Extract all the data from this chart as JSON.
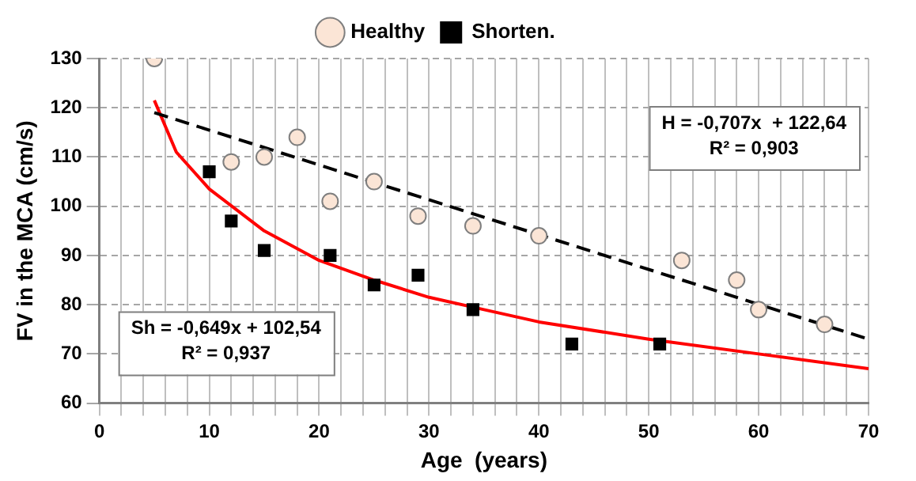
{
  "chart_data": {
    "type": "scatter",
    "xlabel": "Age  (years)",
    "ylabel": "FV in the MCA (cm/s)",
    "xlim": [
      0,
      70
    ],
    "ylim": [
      60,
      130
    ],
    "xticks": [
      0,
      {
        "value": 2,
        "label": null
      },
      {
        "value": 4,
        "label": null
      },
      {
        "value": 6,
        "label": null
      },
      {
        "value": 8,
        "label": null
      },
      10,
      {
        "value": 12,
        "label": null
      },
      {
        "value": 14,
        "label": null
      },
      {
        "value": 16,
        "label": null
      },
      {
        "value": 18,
        "label": null
      },
      20,
      {
        "value": 22,
        "label": null
      },
      {
        "value": 24,
        "label": null
      },
      {
        "value": 26,
        "label": null
      },
      {
        "value": 28,
        "label": null
      },
      30,
      {
        "value": 32,
        "label": null
      },
      {
        "value": 34,
        "label": null
      },
      {
        "value": 36,
        "label": null
      },
      {
        "value": 38,
        "label": null
      },
      40,
      {
        "value": 42,
        "label": null
      },
      {
        "value": 44,
        "label": null
      },
      {
        "value": 46,
        "label": null
      },
      {
        "value": 48,
        "label": null
      },
      50,
      {
        "value": 52,
        "label": null
      },
      {
        "value": 54,
        "label": null
      },
      {
        "value": 56,
        "label": null
      },
      {
        "value": 58,
        "label": null
      },
      60,
      {
        "value": 62,
        "label": null
      },
      {
        "value": 64,
        "label": null
      },
      {
        "value": 66,
        "label": null
      },
      {
        "value": 68,
        "label": null
      },
      70
    ],
    "yticks": [
      60,
      70,
      80,
      90,
      100,
      110,
      120,
      130
    ],
    "grid": true,
    "legend": "top",
    "series": [
      {
        "name": "Healthy",
        "color": "#fbe5d6",
        "marker": "circle",
        "x": [
          5,
          12,
          15,
          18,
          21,
          25,
          29,
          34,
          40,
          53,
          58,
          60,
          66
        ],
        "values": [
          130,
          109,
          110,
          114,
          101,
          105,
          98,
          96,
          94,
          89,
          85,
          79,
          76
        ]
      },
      {
        "name": "Shorten.",
        "color": "#000000",
        "marker": "square",
        "x": [
          10,
          12,
          15,
          21,
          25,
          29,
          34,
          43,
          51
        ],
        "values": [
          107,
          97,
          91,
          90,
          84,
          86,
          79,
          72,
          72
        ]
      },
      {
        "type": "line",
        "color": "#000000",
        "marker": "none",
        "line_style": "dashed",
        "x": [
          5,
          70
        ],
        "values": [
          119,
          73
        ]
      },
      {
        "type": "line",
        "color": "#ff0000",
        "marker": "none",
        "line_style": "solid",
        "x": [
          5,
          7,
          10,
          15,
          20,
          25,
          30,
          35,
          40,
          50,
          60,
          70
        ],
        "values": [
          121.5,
          111,
          103.5,
          95,
          89,
          85,
          81.5,
          79,
          76.5,
          73,
          70,
          67
        ]
      }
    ],
    "annotations": [
      "H = -0,707x  + 122,64\nR² = 0,903",
      "Sh = -0,649x + 102,54\nR² = 0,937"
    ]
  }
}
